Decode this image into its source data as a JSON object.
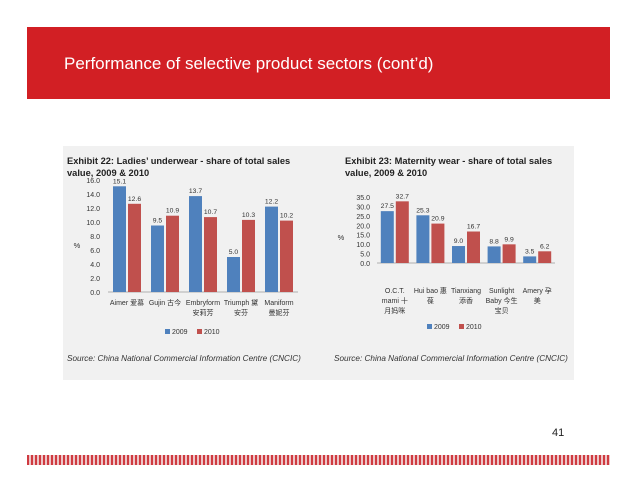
{
  "slide": {
    "title": "Performance of selective product sectors (cont’d)",
    "page_number": "41"
  },
  "colors": {
    "accent": "#d21f24",
    "series_2009": "#4f81bd",
    "series_2010": "#c0504d",
    "panel": "#f1f1f1"
  },
  "chart_data": [
    {
      "type": "bar",
      "title_lines": [
        "Exhibit 22: Ladies’ underwear - share of total sales",
        "value, 2009 & 2010"
      ],
      "ylabel": "%",
      "ylim": [
        0,
        16
      ],
      "yticks": [
        "0.0",
        "2.0",
        "4.0",
        "6.0",
        "8.0",
        "10.0",
        "12.0",
        "14.0",
        "16.0"
      ],
      "categories": [
        "Aimer 爱慕",
        "Gujin 古今",
        "Embryform 安莉芳",
        "Triumph 黛安芬",
        "Maniform 曼妮芬"
      ],
      "category_label_lines": [
        [
          "Aimer 爱慕"
        ],
        [
          "Gujin 古今"
        ],
        [
          "Embryform",
          "安莉芳"
        ],
        [
          "Triumph 黛",
          "安芬"
        ],
        [
          "Maniform",
          "曼妮芬"
        ]
      ],
      "series": [
        {
          "name": "2009",
          "values": [
            15.1,
            9.5,
            13.7,
            5.0,
            12.2
          ],
          "labels": [
            "15.1",
            "9.5",
            "13.7",
            "5.0",
            "12.2"
          ]
        },
        {
          "name": "2010",
          "values": [
            12.6,
            10.9,
            10.7,
            10.3,
            10.2
          ],
          "labels": [
            "12.6",
            "10.9",
            "10.7",
            "10.3",
            "10.2"
          ]
        }
      ],
      "legend": "bottom",
      "source": "Source:  China National Commercial Information Centre (CNCIC)"
    },
    {
      "type": "bar",
      "title_lines": [
        "Exhibit 23: Maternity wear - share of total sales",
        "value, 2009 & 2010"
      ],
      "ylabel": "%",
      "ylim": [
        0,
        35
      ],
      "yticks": [
        "0.0",
        "5.0",
        "10.0",
        "15.0",
        "20.0",
        "25.0",
        "30.0",
        "35.0"
      ],
      "categories": [
        "O.C.T. mami 十月妈咪",
        "Hui bao 惠葆",
        "Tianxiang 添香",
        "Sunlight Baby 今生宝贝",
        "Amery 孕美"
      ],
      "category_label_lines": [
        [
          "O.C.T.",
          "mami 十",
          "月妈咪"
        ],
        [
          "Hui bao 惠",
          "葆"
        ],
        [
          "Tianxiang",
          "添香"
        ],
        [
          "Sunlight",
          "Baby 今生",
          "宝贝"
        ],
        [
          "Amery 孕",
          "美"
        ]
      ],
      "series": [
        {
          "name": "2009",
          "values": [
            27.5,
            25.3,
            9.0,
            8.8,
            3.5
          ],
          "labels": [
            "27.5",
            "25.3",
            "9.0",
            "8.8",
            "3.5"
          ]
        },
        {
          "name": "2010",
          "values": [
            32.7,
            20.9,
            16.7,
            9.9,
            6.2
          ],
          "labels": [
            "32.7",
            "20.9",
            "16.7",
            "9.9",
            "6.2"
          ]
        }
      ],
      "legend": "bottom",
      "source": "Source:  China National Commercial Information Centre (CNCIC)"
    }
  ]
}
